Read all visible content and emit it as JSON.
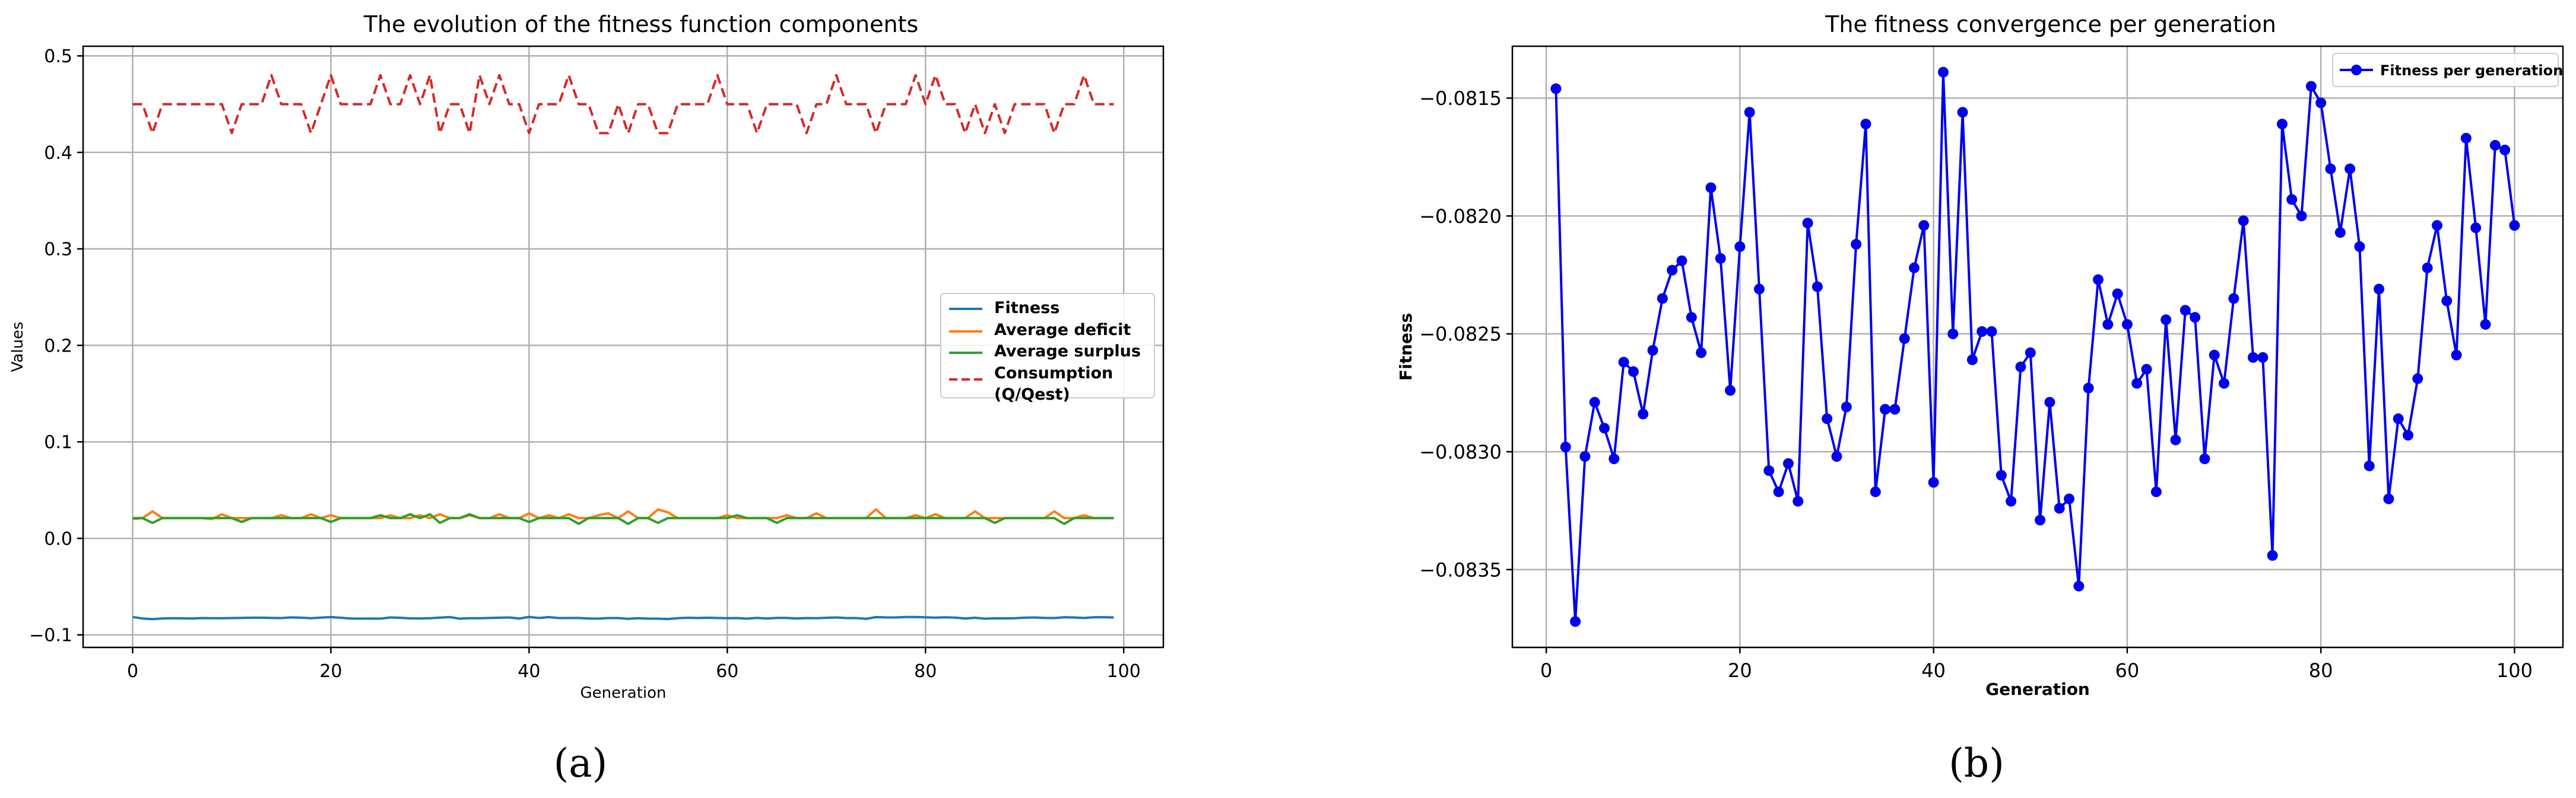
{
  "chart_data": [
    {
      "type": "line",
      "title": "The evolution of the fitness function components",
      "xlabel": "Generation",
      "ylabel": "Values",
      "xlim": [
        -5,
        104
      ],
      "ylim": [
        -0.113,
        0.51
      ],
      "xticks": [
        0,
        20,
        40,
        60,
        80,
        100
      ],
      "yticks": [
        -0.1,
        0.0,
        0.1,
        0.2,
        0.3,
        0.4,
        0.5
      ],
      "grid": true,
      "legend_position": "center-right",
      "colors": {
        "fitness": "#1f77b4",
        "deficit": "#ff7f0e",
        "surplus": "#2ca02c",
        "consumption": "#d62728"
      },
      "x": [
        0,
        1,
        2,
        3,
        4,
        5,
        6,
        7,
        8,
        9,
        10,
        11,
        12,
        13,
        14,
        15,
        16,
        17,
        18,
        19,
        20,
        21,
        22,
        23,
        24,
        25,
        26,
        27,
        28,
        29,
        30,
        31,
        32,
        33,
        34,
        35,
        36,
        37,
        38,
        39,
        40,
        41,
        42,
        43,
        44,
        45,
        46,
        47,
        48,
        49,
        50,
        51,
        52,
        53,
        54,
        55,
        56,
        57,
        58,
        59,
        60,
        61,
        62,
        63,
        64,
        65,
        66,
        67,
        68,
        69,
        70,
        71,
        72,
        73,
        74,
        75,
        76,
        77,
        78,
        79,
        80,
        81,
        82,
        83,
        84,
        85,
        86,
        87,
        88,
        89,
        90,
        91,
        92,
        93,
        94,
        95,
        96,
        97,
        98,
        99
      ],
      "series": [
        {
          "name": "Fitness",
          "style": "solid",
          "values": [
            -0.0815,
            -0.083,
            -0.0837,
            -0.083,
            -0.0828,
            -0.0829,
            -0.083,
            -0.0826,
            -0.0827,
            -0.0828,
            -0.0826,
            -0.0824,
            -0.0822,
            -0.0822,
            -0.0824,
            -0.0826,
            -0.0819,
            -0.0822,
            -0.0827,
            -0.0821,
            -0.0816,
            -0.0823,
            -0.0831,
            -0.0832,
            -0.0831,
            -0.0832,
            -0.082,
            -0.0823,
            -0.0829,
            -0.083,
            -0.0828,
            -0.0821,
            -0.0816,
            -0.0832,
            -0.0828,
            -0.0828,
            -0.0825,
            -0.0822,
            -0.082,
            -0.0831,
            -0.0814,
            -0.0825,
            -0.0816,
            -0.0826,
            -0.0825,
            -0.0825,
            -0.0831,
            -0.0832,
            -0.0826,
            -0.0826,
            -0.0833,
            -0.0828,
            -0.0832,
            -0.0832,
            -0.0836,
            -0.0827,
            -0.0823,
            -0.0825,
            -0.0823,
            -0.0825,
            -0.0827,
            -0.0826,
            -0.0832,
            -0.0824,
            -0.083,
            -0.0824,
            -0.0824,
            -0.083,
            -0.0826,
            -0.0827,
            -0.0823,
            -0.082,
            -0.0826,
            -0.0826,
            -0.0834,
            -0.0816,
            -0.0819,
            -0.082,
            -0.0815,
            -0.0815,
            -0.0818,
            -0.0821,
            -0.0818,
            -0.0821,
            -0.0831,
            -0.0823,
            -0.0832,
            -0.0829,
            -0.0829,
            -0.0827,
            -0.0822,
            -0.082,
            -0.0824,
            -0.0826,
            -0.0817,
            -0.082,
            -0.0825,
            -0.0817,
            -0.0817,
            -0.082
          ]
        },
        {
          "name": "Average deficit",
          "style": "solid",
          "values": [
            0.02,
            0.021,
            0.028,
            0.021,
            0.021,
            0.021,
            0.021,
            0.021,
            0.02,
            0.025,
            0.021,
            0.021,
            0.021,
            0.021,
            0.021,
            0.024,
            0.021,
            0.021,
            0.025,
            0.021,
            0.024,
            0.021,
            0.021,
            0.021,
            0.021,
            0.021,
            0.024,
            0.021,
            0.021,
            0.024,
            0.021,
            0.025,
            0.021,
            0.021,
            0.024,
            0.021,
            0.021,
            0.025,
            0.021,
            0.021,
            0.026,
            0.021,
            0.024,
            0.021,
            0.025,
            0.021,
            0.021,
            0.024,
            0.026,
            0.021,
            0.028,
            0.021,
            0.021,
            0.03,
            0.027,
            0.021,
            0.021,
            0.021,
            0.021,
            0.021,
            0.024,
            0.021,
            0.021,
            0.021,
            0.021,
            0.021,
            0.024,
            0.021,
            0.021,
            0.026,
            0.021,
            0.021,
            0.021,
            0.021,
            0.021,
            0.03,
            0.021,
            0.021,
            0.021,
            0.024,
            0.021,
            0.025,
            0.021,
            0.021,
            0.021,
            0.028,
            0.021,
            0.021,
            0.021,
            0.021,
            0.021,
            0.021,
            0.021,
            0.028,
            0.021,
            0.021,
            0.024,
            0.021,
            0.021,
            0.021
          ]
        },
        {
          "name": "Average surplus",
          "style": "solid",
          "values": [
            0.021,
            0.021,
            0.016,
            0.021,
            0.021,
            0.021,
            0.021,
            0.021,
            0.021,
            0.021,
            0.021,
            0.017,
            0.021,
            0.021,
            0.021,
            0.021,
            0.021,
            0.021,
            0.021,
            0.021,
            0.017,
            0.021,
            0.021,
            0.021,
            0.021,
            0.024,
            0.021,
            0.021,
            0.025,
            0.021,
            0.025,
            0.016,
            0.021,
            0.021,
            0.025,
            0.021,
            0.021,
            0.021,
            0.021,
            0.021,
            0.017,
            0.021,
            0.021,
            0.021,
            0.021,
            0.015,
            0.021,
            0.021,
            0.021,
            0.021,
            0.015,
            0.021,
            0.021,
            0.016,
            0.021,
            0.021,
            0.021,
            0.021,
            0.021,
            0.021,
            0.021,
            0.024,
            0.021,
            0.021,
            0.021,
            0.016,
            0.021,
            0.021,
            0.021,
            0.021,
            0.021,
            0.021,
            0.021,
            0.021,
            0.021,
            0.021,
            0.021,
            0.021,
            0.021,
            0.021,
            0.021,
            0.021,
            0.021,
            0.021,
            0.021,
            0.021,
            0.021,
            0.016,
            0.021,
            0.021,
            0.021,
            0.021,
            0.021,
            0.021,
            0.015,
            0.021,
            0.021,
            0.021,
            0.021,
            0.021
          ]
        },
        {
          "name": "Consumption (Q/Qest)",
          "style": "dashed",
          "values": [
            0.45,
            0.45,
            0.42,
            0.45,
            0.45,
            0.45,
            0.45,
            0.45,
            0.45,
            0.45,
            0.42,
            0.45,
            0.45,
            0.45,
            0.48,
            0.45,
            0.45,
            0.45,
            0.42,
            0.45,
            0.48,
            0.45,
            0.45,
            0.45,
            0.45,
            0.48,
            0.45,
            0.45,
            0.48,
            0.45,
            0.48,
            0.42,
            0.45,
            0.45,
            0.42,
            0.48,
            0.45,
            0.48,
            0.45,
            0.45,
            0.42,
            0.45,
            0.45,
            0.45,
            0.48,
            0.45,
            0.45,
            0.42,
            0.42,
            0.45,
            0.42,
            0.45,
            0.45,
            0.42,
            0.42,
            0.45,
            0.45,
            0.45,
            0.45,
            0.48,
            0.45,
            0.45,
            0.45,
            0.42,
            0.45,
            0.45,
            0.45,
            0.45,
            0.42,
            0.45,
            0.45,
            0.48,
            0.45,
            0.45,
            0.45,
            0.42,
            0.45,
            0.45,
            0.45,
            0.48,
            0.45,
            0.48,
            0.45,
            0.45,
            0.42,
            0.45,
            0.42,
            0.45,
            0.42,
            0.45,
            0.45,
            0.45,
            0.45,
            0.42,
            0.45,
            0.45,
            0.48,
            0.45,
            0.45,
            0.45
          ]
        }
      ]
    },
    {
      "type": "line",
      "title": "The fitness convergence per generation",
      "xlabel": "Generation",
      "ylabel": "Fitness",
      "xlim": [
        -3.5,
        105
      ],
      "ylim": [
        -0.08383,
        -0.08128
      ],
      "xticks": [
        0,
        20,
        40,
        60,
        80,
        100
      ],
      "yticks": [
        -0.0835,
        -0.083,
        -0.0825,
        -0.082,
        -0.0815
      ],
      "ytick_labels": [
        "−0.0835",
        "−0.0830",
        "−0.0825",
        "−0.0820",
        "−0.0815"
      ],
      "grid": true,
      "legend_position": "top-right",
      "colors": {
        "line": "#0000ee"
      },
      "markers": true,
      "x": [
        1,
        2,
        3,
        4,
        5,
        6,
        7,
        8,
        9,
        10,
        11,
        12,
        13,
        14,
        15,
        16,
        17,
        18,
        19,
        20,
        21,
        22,
        23,
        24,
        25,
        26,
        27,
        28,
        29,
        30,
        31,
        32,
        33,
        34,
        35,
        36,
        37,
        38,
        39,
        40,
        41,
        42,
        43,
        44,
        45,
        46,
        47,
        48,
        49,
        50,
        51,
        52,
        53,
        54,
        55,
        56,
        57,
        58,
        59,
        60,
        61,
        62,
        63,
        64,
        65,
        66,
        67,
        68,
        69,
        70,
        71,
        72,
        73,
        74,
        75,
        76,
        77,
        78,
        79,
        80,
        81,
        82,
        83,
        84,
        85,
        86,
        87,
        88,
        89,
        90,
        91,
        92,
        93,
        94,
        95,
        96,
        97,
        98,
        99,
        100
      ],
      "series": [
        {
          "name": "Fitness per generation",
          "values": [
            -0.08146,
            -0.08298,
            -0.08372,
            -0.08302,
            -0.08279,
            -0.0829,
            -0.08303,
            -0.08262,
            -0.08266,
            -0.08284,
            -0.08257,
            -0.08235,
            -0.08223,
            -0.08219,
            -0.08243,
            -0.08258,
            -0.08188,
            -0.08218,
            -0.08274,
            -0.08213,
            -0.08156,
            -0.08231,
            -0.08308,
            -0.08317,
            -0.08305,
            -0.08321,
            -0.08203,
            -0.0823,
            -0.08286,
            -0.08302,
            -0.08281,
            -0.08212,
            -0.08161,
            -0.08317,
            -0.08282,
            -0.08282,
            -0.08252,
            -0.08222,
            -0.08204,
            -0.08313,
            -0.08139,
            -0.0825,
            -0.08156,
            -0.08261,
            -0.08249,
            -0.08249,
            -0.0831,
            -0.08321,
            -0.08264,
            -0.08258,
            -0.08329,
            -0.08279,
            -0.08324,
            -0.0832,
            -0.08357,
            -0.08273,
            -0.08227,
            -0.08246,
            -0.08233,
            -0.08246,
            -0.08271,
            -0.08265,
            -0.08317,
            -0.08244,
            -0.08295,
            -0.0824,
            -0.08243,
            -0.08303,
            -0.08259,
            -0.08271,
            -0.08235,
            -0.08202,
            -0.0826,
            -0.0826,
            -0.08344,
            -0.08161,
            -0.08193,
            -0.082,
            -0.08145,
            -0.08152,
            -0.0818,
            -0.08207,
            -0.0818,
            -0.08213,
            -0.08306,
            -0.08231,
            -0.0832,
            -0.08286,
            -0.08293,
            -0.08269,
            -0.08222,
            -0.08204,
            -0.08236,
            -0.08259,
            -0.08167,
            -0.08205,
            -0.08246,
            -0.0817,
            -0.08172,
            -0.08204
          ]
        }
      ]
    }
  ],
  "captions": {
    "a": "(a)",
    "b": "(b)"
  }
}
